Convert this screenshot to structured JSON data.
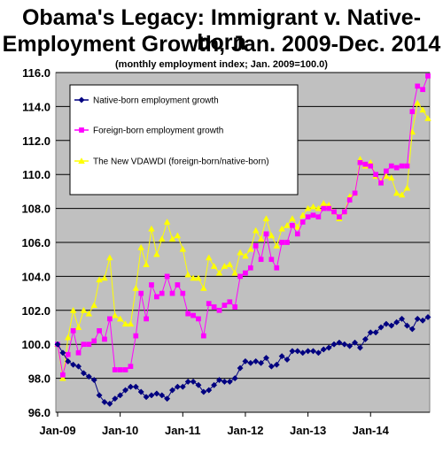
{
  "chart_data": {
    "type": "line",
    "title": "Obama's Legacy: Immigrant v. Native-born",
    "title_line2": "Employment Growth, Jan. 2009-Dec. 2014",
    "subtitle": "(monthly employment index; Jan. 2009=100.0)",
    "xlabel": "",
    "ylabel": "",
    "ylim": [
      96,
      116
    ],
    "y_ticks": [
      "96.0",
      "98.0",
      "100.0",
      "102.0",
      "104.0",
      "106.0",
      "108.0",
      "110.0",
      "112.0",
      "114.0",
      "116.0"
    ],
    "x_ticks": [
      "Jan-09",
      "Jan-10",
      "Jan-11",
      "Jan-12",
      "Jan-13",
      "Jan-14"
    ],
    "months": 72,
    "grid": "horizontal",
    "legend_position": "top-left",
    "background": "#c0c0c0",
    "series": [
      {
        "name": "Native-born employment growth",
        "color": "#000080",
        "marker": "diamond",
        "values": [
          100.0,
          99.5,
          99.0,
          98.8,
          98.7,
          98.3,
          98.1,
          97.9,
          97.0,
          96.6,
          96.5,
          96.8,
          97.0,
          97.3,
          97.5,
          97.5,
          97.2,
          96.9,
          97.0,
          97.1,
          97.0,
          96.8,
          97.3,
          97.5,
          97.5,
          97.8,
          97.8,
          97.6,
          97.2,
          97.3,
          97.6,
          97.9,
          97.8,
          97.8,
          98.0,
          98.6,
          99.0,
          98.9,
          99.0,
          98.9,
          99.2,
          98.7,
          98.8,
          99.3,
          99.1,
          99.6,
          99.6,
          99.5,
          99.6,
          99.6,
          99.5,
          99.7,
          99.8,
          100.0,
          100.1,
          100.0,
          99.9,
          100.1,
          99.8,
          100.3,
          100.7,
          100.7,
          101.0,
          101.2,
          101.1,
          101.3,
          101.5,
          101.1,
          100.9,
          101.5,
          101.4,
          101.6
        ]
      },
      {
        "name": "Foreign-born employment growth",
        "color": "#ff00ff",
        "marker": "square",
        "values": [
          100.0,
          98.2,
          99.4,
          100.8,
          99.5,
          100.0,
          100.0,
          100.2,
          100.8,
          100.3,
          101.5,
          98.5,
          98.5,
          98.5,
          98.7,
          100.5,
          103.0,
          101.5,
          103.5,
          102.8,
          103.0,
          104.0,
          103.0,
          103.5,
          103.0,
          101.8,
          101.7,
          101.5,
          100.5,
          102.4,
          102.2,
          102.0,
          102.3,
          102.5,
          102.2,
          104.0,
          104.2,
          104.5,
          105.8,
          105.0,
          106.5,
          105.0,
          104.5,
          106.0,
          106.0,
          107.0,
          106.5,
          107.2,
          107.5,
          107.6,
          107.5,
          108.0,
          108.0,
          107.8,
          107.5,
          107.8,
          108.5,
          108.9,
          110.7,
          110.6,
          110.5,
          110.0,
          109.5,
          110.2,
          110.5,
          110.4,
          110.5,
          110.5,
          113.7,
          115.2,
          115.0,
          115.8
        ]
      },
      {
        "name": "The New VDAWDI  (foreign-born/native-born)",
        "color": "#ffff00",
        "marker": "triangle",
        "values": [
          100.0,
          98.0,
          100.4,
          102.0,
          101.0,
          102.0,
          101.8,
          102.3,
          103.8,
          103.9,
          105.1,
          101.7,
          101.5,
          101.2,
          101.2,
          103.3,
          105.7,
          104.7,
          106.8,
          105.3,
          106.2,
          107.2,
          106.2,
          106.4,
          105.6,
          104.1,
          103.9,
          103.9,
          103.3,
          105.1,
          104.6,
          104.2,
          104.6,
          104.7,
          104.2,
          105.4,
          105.2,
          105.6,
          106.7,
          106.2,
          107.4,
          106.4,
          105.8,
          106.8,
          107.0,
          107.4,
          106.9,
          107.6,
          108.0,
          108.1,
          108.0,
          108.3,
          108.2,
          107.8,
          107.4,
          107.8,
          108.7,
          108.9,
          110.9,
          110.5,
          110.7,
          109.9,
          109.6,
          109.9,
          109.8,
          108.9,
          108.8,
          109.2,
          112.5,
          114.2,
          113.8,
          113.3
        ]
      }
    ]
  }
}
